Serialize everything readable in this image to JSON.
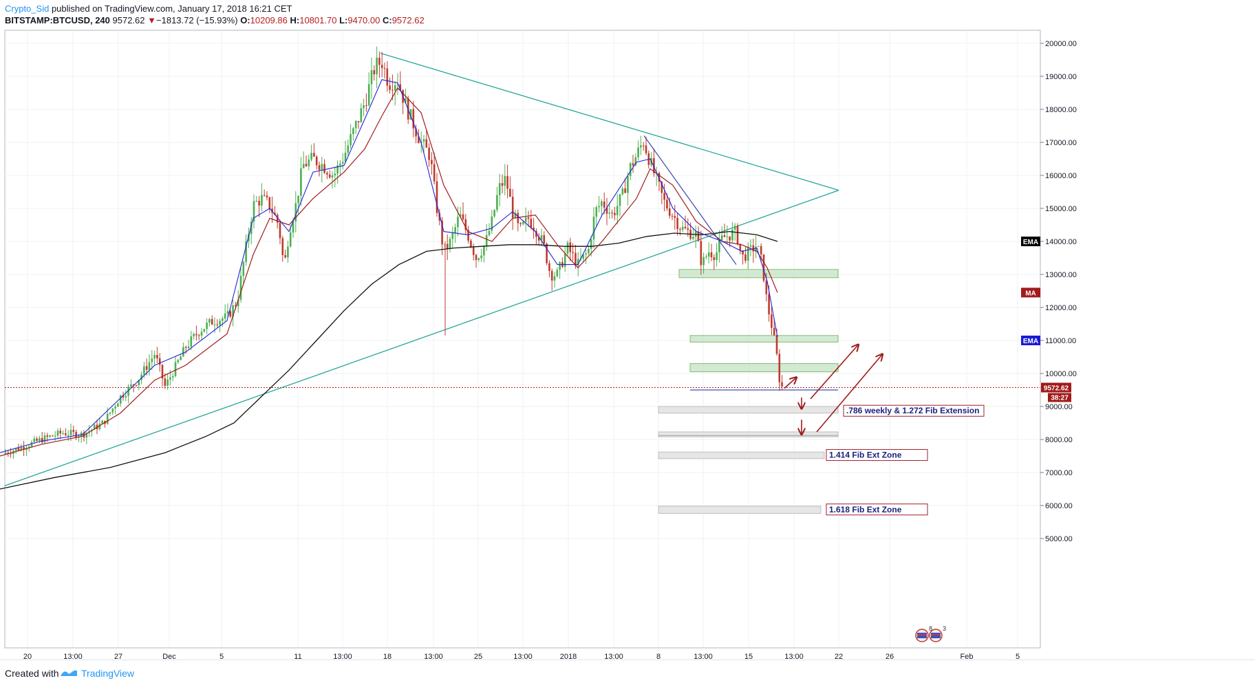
{
  "header": {
    "author": "Crypto_Sid",
    "published_text": "published on TradingView.com, January 17, 2018 16:21 CET",
    "symbol": "BITSTAMP:BTCUSD, 240",
    "last_price": "9572.62",
    "change_arrow": "▼",
    "change": "−1813.72 (−15.93%)",
    "o_label": "O:",
    "o_value": "10209.86",
    "h_label": "H:",
    "h_value": "10801.70",
    "l_label": "L:",
    "l_value": "9470.00",
    "c_label": "C:",
    "c_value": "9572.62"
  },
  "footer": {
    "created_with": "Created with",
    "brand": "TradingView"
  },
  "colors": {
    "up": "#4caf50",
    "down": "#c0392b",
    "ema_fast": "#1e24d6",
    "ma": "#a11b1b",
    "ema_slow": "#111111",
    "trendline": "#26a69a",
    "fib_label_border": "#a01c2c",
    "fib_label_text": "#1a237e",
    "support_zone": "#c8e6c9"
  },
  "chart_data": {
    "type": "candlestick",
    "title": "",
    "price_axis": {
      "ylim": [
        4600,
        20600
      ],
      "ticks": [
        "20000.00",
        "19000.00",
        "18000.00",
        "17000.00",
        "16000.00",
        "15000.00",
        "14000.00",
        "13000.00",
        "12000.00",
        "11000.00",
        "10000.00",
        "9000.00",
        "8000.00",
        "7000.00",
        "6000.00",
        "5000.00"
      ]
    },
    "time_axis": {
      "ticks": [
        "20",
        "13:00",
        "27",
        "Dec",
        "5",
        "11",
        "13:00",
        "18",
        "13:00",
        "25",
        "13:00",
        "2018",
        "13:00",
        "8",
        "13:00",
        "15",
        "13:00",
        "22",
        "26",
        "Feb",
        "5"
      ]
    },
    "last_price_tag": "9572.62",
    "countdown_tag": "38:27",
    "indicator_tags": [
      {
        "name": "EMA",
        "value": 14000,
        "color": "#000000"
      },
      {
        "name": "MA",
        "value": 12450,
        "color": "#a11b1b"
      },
      {
        "name": "EMA",
        "value": 11000,
        "color": "#1a1ad6"
      }
    ],
    "price_path": [
      [
        0,
        7550
      ],
      [
        30,
        7750
      ],
      [
        60,
        8000
      ],
      [
        90,
        8200
      ],
      [
        120,
        8150
      ],
      [
        150,
        8500
      ],
      [
        175,
        9300
      ],
      [
        200,
        9800
      ],
      [
        225,
        10600
      ],
      [
        240,
        9600
      ],
      [
        255,
        10200
      ],
      [
        270,
        10800
      ],
      [
        290,
        11300
      ],
      [
        310,
        11600
      ],
      [
        330,
        11700
      ],
      [
        345,
        12200
      ],
      [
        355,
        13500
      ],
      [
        368,
        15100
      ],
      [
        380,
        15300
      ],
      [
        392,
        15100
      ],
      [
        405,
        14500
      ],
      [
        413,
        13200
      ],
      [
        420,
        14300
      ],
      [
        430,
        15100
      ],
      [
        440,
        16300
      ],
      [
        455,
        16500
      ],
      [
        470,
        16300
      ],
      [
        485,
        16000
      ],
      [
        500,
        16600
      ],
      [
        515,
        17400
      ],
      [
        530,
        18200
      ],
      [
        545,
        19300
      ],
      [
        555,
        19450
      ],
      [
        565,
        18800
      ],
      [
        578,
        18900
      ],
      [
        590,
        18100
      ],
      [
        600,
        17600
      ],
      [
        612,
        17000
      ],
      [
        625,
        16600
      ],
      [
        635,
        15000
      ],
      [
        645,
        13700
      ],
      [
        655,
        14000
      ],
      [
        668,
        14800
      ],
      [
        680,
        14200
      ],
      [
        692,
        13500
      ],
      [
        705,
        13900
      ],
      [
        715,
        14600
      ],
      [
        725,
        15600
      ],
      [
        735,
        15900
      ],
      [
        745,
        14900
      ],
      [
        755,
        14300
      ],
      [
        768,
        14700
      ],
      [
        778,
        14400
      ],
      [
        790,
        13900
      ],
      [
        800,
        13000
      ],
      [
        810,
        13000
      ],
      [
        825,
        13800
      ],
      [
        840,
        13300
      ],
      [
        855,
        13700
      ],
      [
        865,
        14900
      ],
      [
        875,
        15200
      ],
      [
        890,
        14800
      ],
      [
        905,
        15400
      ],
      [
        915,
        16200
      ],
      [
        925,
        16600
      ],
      [
        935,
        17050
      ],
      [
        945,
        16400
      ],
      [
        955,
        15800
      ],
      [
        965,
        15200
      ],
      [
        978,
        14800
      ],
      [
        990,
        14400
      ],
      [
        1000,
        14300
      ],
      [
        1012,
        14200
      ],
      [
        1020,
        13300
      ],
      [
        1030,
        13700
      ],
      [
        1040,
        13600
      ],
      [
        1050,
        14100
      ],
      [
        1060,
        14200
      ],
      [
        1070,
        14300
      ],
      [
        1078,
        13500
      ],
      [
        1090,
        13700
      ],
      [
        1100,
        13900
      ],
      [
        1108,
        13300
      ],
      [
        1115,
        12100
      ],
      [
        1122,
        11400
      ],
      [
        1128,
        10700
      ],
      [
        1133,
        9800
      ],
      [
        1137,
        9570
      ]
    ],
    "ema_fast_path": [
      [
        0,
        7600
      ],
      [
        60,
        7950
      ],
      [
        120,
        8150
      ],
      [
        175,
        9250
      ],
      [
        225,
        10250
      ],
      [
        270,
        10650
      ],
      [
        330,
        11600
      ],
      [
        368,
        14700
      ],
      [
        392,
        15000
      ],
      [
        420,
        14300
      ],
      [
        455,
        16100
      ],
      [
        500,
        16300
      ],
      [
        530,
        17700
      ],
      [
        555,
        18900
      ],
      [
        578,
        18800
      ],
      [
        612,
        17000
      ],
      [
        645,
        14300
      ],
      [
        680,
        14200
      ],
      [
        715,
        14400
      ],
      [
        745,
        14900
      ],
      [
        778,
        14300
      ],
      [
        810,
        13300
      ],
      [
        840,
        13300
      ],
      [
        875,
        14800
      ],
      [
        925,
        16400
      ],
      [
        945,
        16500
      ],
      [
        978,
        15000
      ],
      [
        1012,
        14300
      ],
      [
        1050,
        14000
      ],
      [
        1078,
        13700
      ],
      [
        1100,
        13800
      ],
      [
        1115,
        12800
      ],
      [
        1130,
        11100
      ]
    ],
    "ma_path": [
      [
        0,
        7500
      ],
      [
        60,
        7850
      ],
      [
        120,
        8100
      ],
      [
        175,
        8800
      ],
      [
        225,
        9800
      ],
      [
        270,
        10250
      ],
      [
        330,
        11200
      ],
      [
        368,
        13600
      ],
      [
        392,
        14700
      ],
      [
        420,
        14500
      ],
      [
        455,
        15300
      ],
      [
        500,
        16100
      ],
      [
        530,
        16800
      ],
      [
        555,
        17800
      ],
      [
        578,
        18650
      ],
      [
        612,
        17900
      ],
      [
        645,
        15700
      ],
      [
        680,
        14300
      ],
      [
        715,
        14000
      ],
      [
        745,
        14700
      ],
      [
        778,
        14800
      ],
      [
        810,
        13900
      ],
      [
        840,
        13200
      ],
      [
        875,
        14000
      ],
      [
        925,
        15300
      ],
      [
        945,
        16200
      ],
      [
        978,
        15700
      ],
      [
        1012,
        14600
      ],
      [
        1050,
        14000
      ],
      [
        1078,
        13900
      ],
      [
        1100,
        13700
      ],
      [
        1115,
        13200
      ],
      [
        1130,
        12450
      ]
    ],
    "ema_slow_path": [
      [
        0,
        6500
      ],
      [
        80,
        6850
      ],
      [
        160,
        7150
      ],
      [
        240,
        7600
      ],
      [
        300,
        8100
      ],
      [
        340,
        8500
      ],
      [
        380,
        9300
      ],
      [
        420,
        10100
      ],
      [
        460,
        11000
      ],
      [
        500,
        11900
      ],
      [
        540,
        12700
      ],
      [
        580,
        13300
      ],
      [
        620,
        13700
      ],
      [
        660,
        13800
      ],
      [
        700,
        13850
      ],
      [
        740,
        13900
      ],
      [
        780,
        13900
      ],
      [
        820,
        13850
      ],
      [
        860,
        13850
      ],
      [
        900,
        13950
      ],
      [
        940,
        14150
      ],
      [
        980,
        14250
      ],
      [
        1020,
        14200
      ],
      [
        1060,
        14300
      ],
      [
        1100,
        14200
      ],
      [
        1130,
        14000
      ]
    ],
    "triangle": {
      "upper": [
        [
          553,
          19700
        ],
        [
          1219,
          15550
        ]
      ],
      "lower": [
        [
          7,
          6600
        ],
        [
          1219,
          15550
        ]
      ]
    },
    "breakdown_line": [
      [
        936,
        17200
      ],
      [
        1070,
        13300
      ]
    ],
    "support_zones": [
      {
        "x1": 987,
        "x2": 1218,
        "low": 12900,
        "high": 13150
      },
      {
        "x1": 1003,
        "x2": 1218,
        "low": 10950,
        "high": 11150
      },
      {
        "x1": 1003,
        "x2": 1218,
        "low": 10050,
        "high": 10300
      }
    ],
    "current_level_line": {
      "x1": 1003,
      "x2": 1218,
      "value": 9500
    },
    "fib_zones": [
      {
        "x1": 957,
        "x2": 1218,
        "low": 8800,
        "high": 9000
      },
      {
        "x1": 957,
        "x2": 1218,
        "low": 8080,
        "high": 8230
      },
      {
        "x1": 957,
        "x2": 1198,
        "low": 7420,
        "high": 7620
      },
      {
        "x1": 957,
        "x2": 1193,
        "low": 5760,
        "high": 5980
      }
    ],
    "fib_labels": [
      {
        "text": ".786 weekly & 1.272 Fib Extension",
        "value": 8870,
        "x": 1226,
        "w": 204
      },
      {
        "text": "1.414 Fib Ext Zone",
        "value": 7530,
        "x": 1201,
        "w": 147
      },
      {
        "text": "1.618 Fib Ext Zone",
        "value": 5880,
        "x": 1201,
        "w": 147
      }
    ],
    "arrows": [
      {
        "from": [
          1140,
          9550
        ],
        "to": [
          1157,
          9870
        ]
      },
      {
        "from": [
          1165,
          9270
        ],
        "to": [
          1165,
          8950
        ]
      },
      {
        "from": [
          1165,
          8600
        ],
        "to": [
          1165,
          8170
        ]
      },
      {
        "from": [
          1178,
          9230
        ],
        "to": [
          1247,
          10860
        ]
      },
      {
        "from": [
          1187,
          8230
        ],
        "to": [
          1282,
          10570
        ]
      }
    ]
  }
}
